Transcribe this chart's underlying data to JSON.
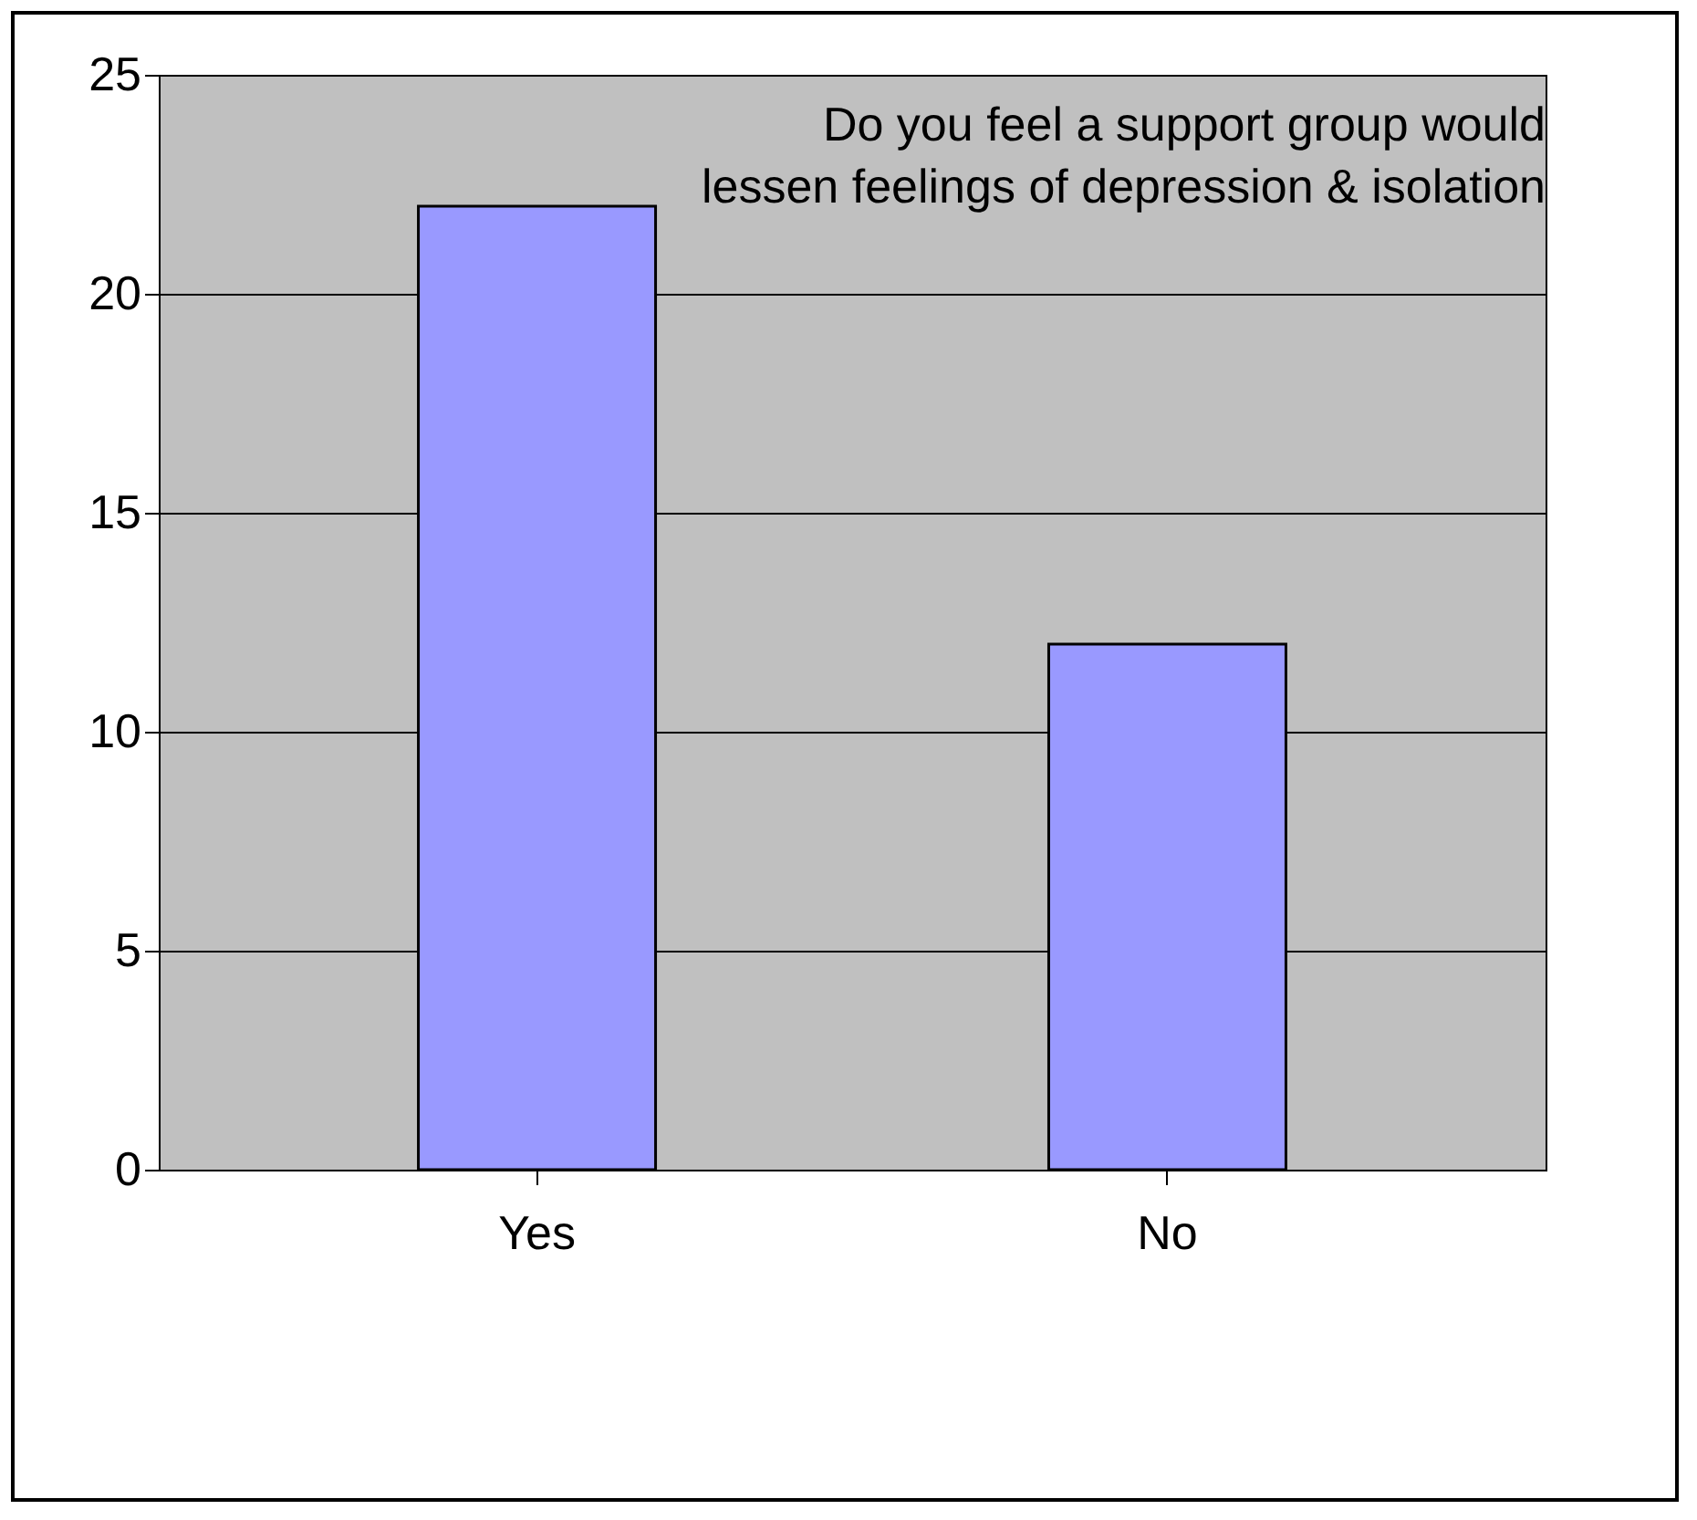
{
  "chart_data": {
    "type": "bar",
    "title": "Do you feel a support group would lessen feelings of depression & isolation",
    "categories": [
      "Yes",
      "No"
    ],
    "values": [
      22,
      12
    ],
    "color": "#9999ff",
    "ylim": [
      0,
      25
    ],
    "yticks": [
      0,
      5,
      10,
      15,
      20,
      25
    ],
    "grid": "y"
  }
}
